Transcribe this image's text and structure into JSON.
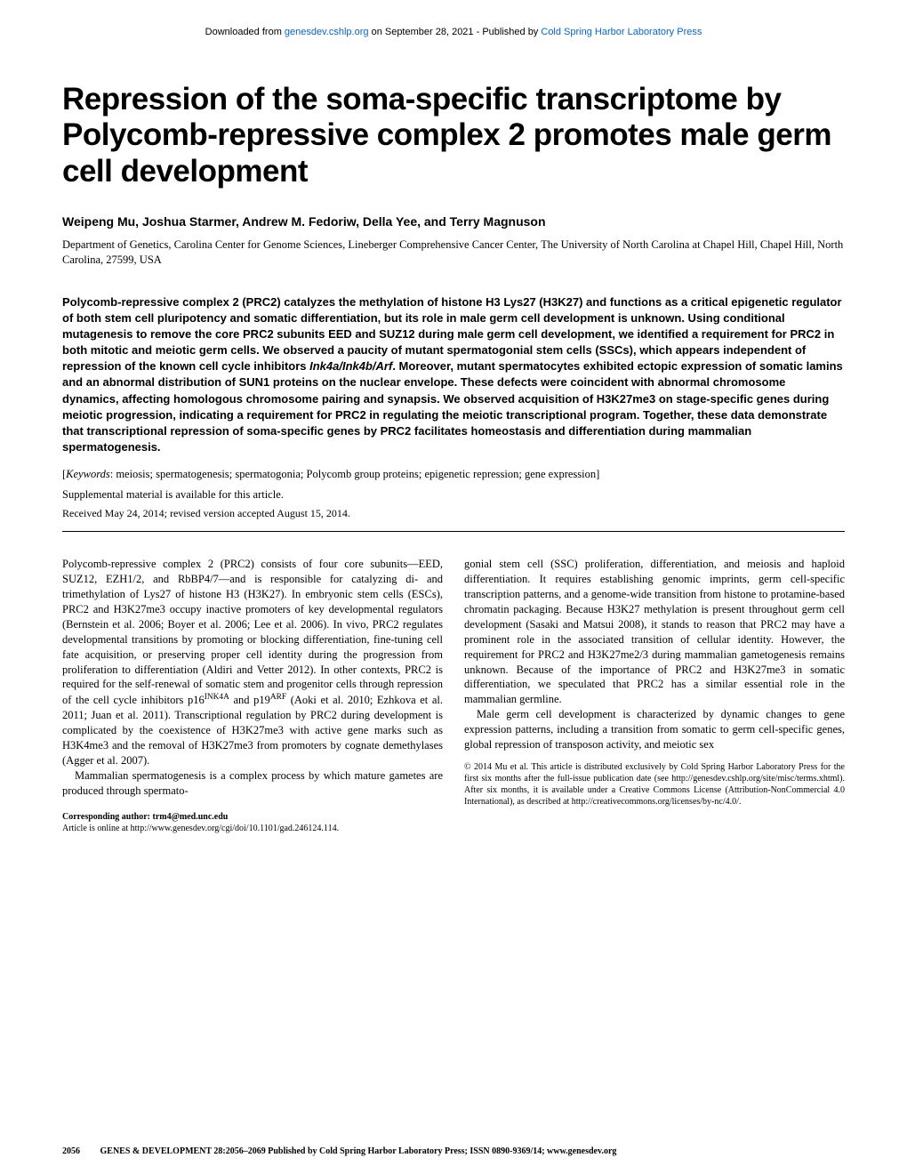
{
  "download_bar": {
    "prefix": "Downloaded from ",
    "link1": "genesdev.cshlp.org",
    "middle": " on September 28, 2021 - Published by ",
    "link2": "Cold Spring Harbor Laboratory Press"
  },
  "title": "Repression of the soma-specific transcriptome by Polycomb-repressive complex 2 promotes male germ cell development",
  "authors": "Weipeng Mu, Joshua Starmer, Andrew M. Fedoriw, Della Yee, and Terry Magnuson",
  "affiliation": "Department of Genetics, Carolina Center for Genome Sciences, Lineberger Comprehensive Cancer Center, The University of North Carolina at Chapel Hill, Chapel Hill, North Carolina, 27599, USA",
  "abstract_pre": "Polycomb-repressive complex 2 (PRC2) catalyzes the methylation of histone H3 Lys27 (H3K27) and functions as a critical epigenetic regulator of both stem cell pluripotency and somatic differentiation, but its role in male germ cell development is unknown. Using conditional mutagenesis to remove the core PRC2 subunits EED and SUZ12 during male germ cell development, we identified a requirement for PRC2 in both mitotic and meiotic germ cells. We observed a paucity of mutant spermatogonial stem cells (SSCs), which appears independent of repression of the known cell cycle inhibitors ",
  "abstract_gene": "Ink4a/Ink4b/Arf",
  "abstract_post": ". Moreover, mutant spermatocytes exhibited ectopic expression of somatic lamins and an abnormal distribution of SUN1 proteins on the nuclear envelope. These defects were coincident with abnormal chromosome dynamics, affecting homologous chromosome pairing and synapsis. We observed acquisition of H3K27me3 on stage-specific genes during meiotic progression, indicating a requirement for PRC2 in regulating the meiotic transcriptional program. Together, these data demonstrate that transcriptional repression of soma-specific genes by PRC2 facilitates homeostasis and differentiation during mammalian spermatogenesis.",
  "keywords_label": "Keywords",
  "keywords": ": meiosis; spermatogenesis; spermatogonia; Polycomb group proteins; epigenetic repression; gene expression]",
  "supplemental": "Supplemental material is available for this article.",
  "received": "Received May 24, 2014; revised version accepted August 15, 2014.",
  "body": {
    "col1_p1_a": "Polycomb-repressive complex 2 (PRC2) consists of four core subunits—EED, SUZ12, EZH1/2, and RbBP4/7—and is responsible for catalyzing di- and trimethylation of Lys27 of histone H3 (H3K27). In embryonic stem cells (ESCs), PRC2 and H3K27me3 occupy inactive promoters of key developmental regulators (Bernstein et al. 2006; Boyer et al. 2006; Lee et al. 2006). In vivo, PRC2 regulates developmental transitions by promoting or blocking differentiation, fine-tuning cell fate acquisition, or preserving proper cell identity during the progression from proliferation to differentiation (Aldiri and Vetter 2012). In other contexts, PRC2 is required for the self-renewal of somatic stem and progenitor cells through repression of the cell cycle inhibitors p16",
    "col1_p1_sup1": "INK4A",
    "col1_p1_b": " and p19",
    "col1_p1_sup2": "ARF",
    "col1_p1_c": " (Aoki et al. 2010; Ezhkova et al. 2011; Juan et al. 2011). Transcriptional regulation by PRC2 during development is complicated by the coexistence of H3K27me3 with active gene marks such as H3K4me3 and the removal of H3K27me3 from promoters by cognate demethylases (Agger et al. 2007).",
    "col1_p2": "Mammalian spermatogenesis is a complex process by which mature gametes are produced through spermato-",
    "col2_p1": "gonial stem cell (SSC) proliferation, differentiation, and meiosis and haploid differentiation. It requires establishing genomic imprints, germ cell-specific transcription patterns, and a genome-wide transition from histone to protamine-based chromatin packaging. Because H3K27 methylation is present throughout germ cell development (Sasaki and Matsui 2008), it stands to reason that PRC2 may have a prominent role in the associated transition of cellular identity. However, the requirement for PRC2 and H3K27me2/3 during mammalian gametogenesis remains unknown. Because of the importance of PRC2 and H3K27me3 in somatic differentiation, we speculated that PRC2 has a similar essential role in the mammalian germline.",
    "col2_p2": "Male germ cell development is characterized by dynamic changes to gene expression patterns, including a transition from somatic to germ cell-specific genes, global repression of transposon activity, and meiotic sex"
  },
  "corresponding": {
    "label": "Corresponding author: trm4@med.unc.edu",
    "article_line": "Article is online at http://www.genesdev.org/cgi/doi/10.1101/gad.246124.114."
  },
  "copyright": "© 2014 Mu et al.   This article is distributed exclusively by Cold Spring Harbor Laboratory Press for the first six months after the full-issue publication date (see http://genesdev.cshlp.org/site/misc/terms.xhtml). After six months, it is available under a Creative Commons License (Attribution-NonCommercial 4.0 International), as described at http://creativecommons.org/licenses/by-nc/4.0/.",
  "footer": {
    "page": "2056",
    "citation": "GENES & DEVELOPMENT 28:2056–2069 Published by Cold Spring Harbor Laboratory Press; ISSN 0890-9369/14; www.genesdev.org"
  }
}
